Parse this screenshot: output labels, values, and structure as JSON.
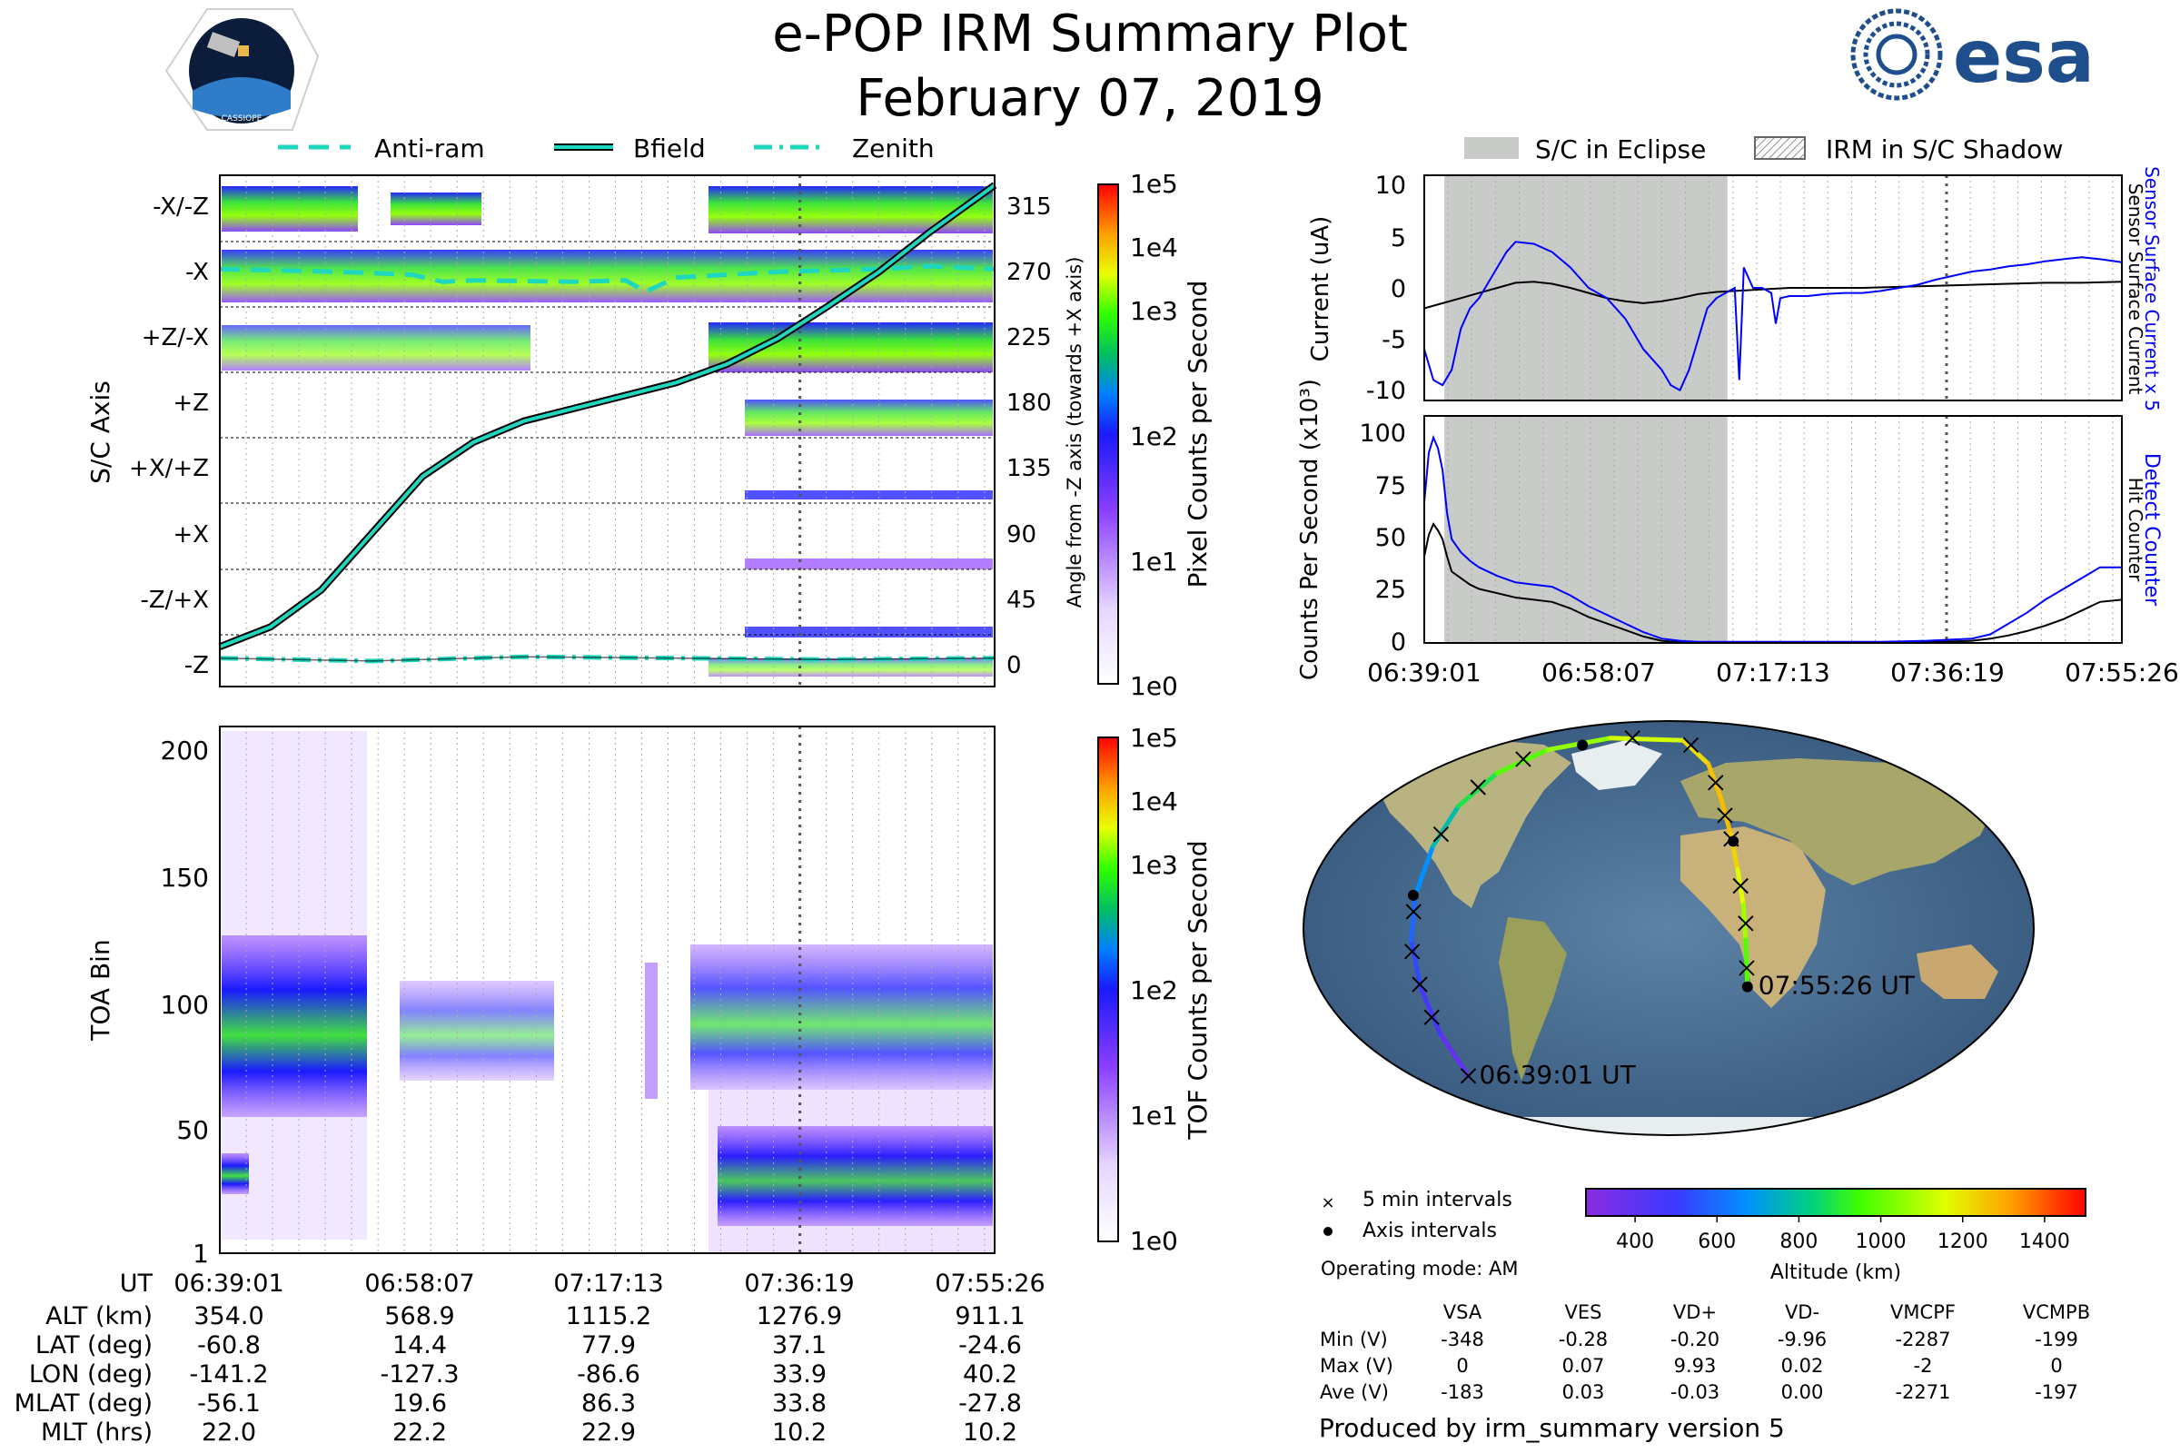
{
  "header": {
    "title": "e-POP IRM Summary Plot",
    "date": "February 07, 2019",
    "mission_logo_text": "CASSIOPE",
    "agency_logo_text": "esa"
  },
  "legends": {
    "left": [
      "Anti-ram",
      "Bfield",
      "Zenith"
    ],
    "right": [
      "S/C in Eclipse",
      "IRM in S/C Shadow"
    ]
  },
  "colors": {
    "bfield": "#1fd6bf",
    "antiram": "#1fd6bf",
    "eclipse": "#c8cbc8",
    "detect_counter": "#0000ff",
    "hit_counter": "#000000",
    "sensor_current_x5": "#0000ff",
    "sensor_current": "#000000"
  },
  "chart_data": [
    {
      "id": "axis",
      "type": "heatmap",
      "ylabel": "S/C Axis",
      "categories": [
        "-X/-Z",
        "-X",
        "+Z/-X",
        "+Z",
        "+X/+Z",
        "+X",
        "-Z/+X",
        "-Z"
      ],
      "right_ylabel": "Angle from -Z axis (towards +X axis)",
      "right_ticks": [
        315,
        270,
        225,
        180,
        135,
        90,
        45,
        0
      ],
      "ylim": [
        -20,
        340
      ],
      "x_range_min": [
        0,
        76.4
      ],
      "colorbar": {
        "label": "Pixel Counts per Second",
        "ticks": [
          "1e5",
          "1e4",
          "1e3",
          "1e2",
          "1e1",
          "1e0"
        ]
      },
      "series": [
        {
          "name": "Bfield",
          "x": [
            0,
            5,
            10,
            15,
            20,
            25,
            30,
            35,
            40,
            45,
            50,
            55,
            60,
            65,
            70,
            76.4
          ],
          "values": [
            8,
            22,
            48,
            88,
            128,
            152,
            167,
            176,
            185,
            194,
            207,
            225,
            248,
            272,
            300,
            333
          ]
        },
        {
          "name": "Anti-ram",
          "x": [
            0,
            12,
            19,
            22,
            25,
            35,
            40,
            42,
            45,
            55,
            65,
            70,
            76.4
          ],
          "values": [
            274,
            272,
            270,
            265,
            266,
            265,
            266,
            258,
            268,
            272,
            274,
            276,
            274
          ]
        },
        {
          "name": "Zenith",
          "x": [
            0,
            15,
            30,
            45,
            60,
            76.4
          ],
          "values": [
            0,
            -2,
            1,
            0,
            -1,
            0
          ]
        }
      ]
    },
    {
      "id": "toa",
      "type": "heatmap",
      "ylabel": "TOA Bin",
      "y_ticks": [
        200,
        150,
        100,
        50,
        1
      ],
      "ylim": [
        1,
        210
      ],
      "colorbar": {
        "label": "TOF Counts per Second",
        "ticks": [
          "1e5",
          "1e4",
          "1e3",
          "1e2",
          "1e1",
          "1e0"
        ]
      }
    },
    {
      "id": "current",
      "type": "line",
      "ylabel": "Current (uA)",
      "right_labels": [
        "Sensor Surface Current x 5",
        "Sensor Surface Current"
      ],
      "y_ticks": [
        10,
        5,
        0,
        -5,
        -10
      ],
      "ylim": [
        -11,
        11
      ],
      "series": [
        {
          "name": "Sensor Surface Current x 5",
          "x": [
            0,
            1,
            2,
            3,
            4,
            5,
            6,
            7,
            8,
            9,
            10,
            12,
            14,
            16,
            18,
            20,
            22,
            24,
            26,
            27,
            28,
            29,
            30,
            31,
            32,
            33,
            34,
            34.5,
            35,
            36,
            37,
            38,
            38.5,
            39,
            40,
            42,
            44,
            46,
            48,
            50,
            52,
            54,
            56,
            58,
            60,
            62,
            64,
            66,
            68,
            70,
            72,
            74,
            76.4
          ],
          "values": [
            -6,
            -9,
            -9.5,
            -8,
            -4,
            -2,
            -1,
            0.5,
            2,
            3.5,
            4.5,
            4.3,
            3.5,
            2,
            0,
            -1,
            -3,
            -6,
            -8,
            -9.5,
            -10,
            -8,
            -5,
            -2,
            -1,
            -0.5,
            0,
            -9,
            2,
            0,
            0,
            -0.5,
            -3.5,
            -1,
            -0.8,
            -0.8,
            -0.6,
            -0.5,
            -0.5,
            -0.3,
            0,
            0.3,
            0.8,
            1.2,
            1.6,
            1.8,
            2.1,
            2.3,
            2.6,
            2.8,
            3,
            2.8,
            2.5
          ]
        },
        {
          "name": "Sensor Surface Current",
          "x": [
            0,
            2,
            4,
            6,
            8,
            10,
            12,
            14,
            16,
            18,
            20,
            22,
            24,
            26,
            28,
            30,
            32,
            34,
            36,
            38,
            40,
            44,
            48,
            52,
            56,
            60,
            64,
            68,
            72,
            76.4
          ],
          "values": [
            -2,
            -1.5,
            -1,
            -0.5,
            0,
            0.5,
            0.6,
            0.4,
            0,
            -0.5,
            -1,
            -1.3,
            -1.5,
            -1.3,
            -1,
            -0.6,
            -0.4,
            -0.3,
            -0.2,
            -0.1,
            0,
            0,
            0,
            0.1,
            0.2,
            0.3,
            0.4,
            0.5,
            0.5,
            0.6
          ]
        }
      ]
    },
    {
      "id": "counts",
      "type": "line",
      "ylabel": "Counts Per Second (x10³)",
      "right_labels": [
        "Detect Counter",
        "Hit Counter"
      ],
      "y_ticks": [
        100,
        75,
        50,
        25,
        0
      ],
      "ylim": [
        0,
        105
      ],
      "xlim": [
        0,
        76.4
      ],
      "x_ticks": [
        "06:39:01",
        "06:58:07",
        "07:17:13",
        "07:36:19",
        "07:55:26"
      ],
      "series": [
        {
          "name": "Detect Counter",
          "x": [
            0,
            0.5,
            1,
            1.5,
            2,
            2.5,
            3,
            4,
            5,
            6,
            8,
            10,
            12,
            14,
            16,
            18,
            20,
            22,
            24,
            26,
            28,
            30,
            35,
            40,
            45,
            50,
            55,
            60,
            62,
            64,
            66,
            68,
            70,
            72,
            74,
            76.4
          ],
          "values": [
            65,
            88,
            95,
            90,
            80,
            60,
            48,
            42,
            38,
            35,
            31,
            28,
            27,
            26,
            22,
            17,
            13,
            9,
            5,
            2,
            1,
            0.5,
            0.5,
            0.5,
            0.5,
            0.5,
            1,
            2,
            4,
            9,
            14,
            20,
            25,
            30,
            35,
            35
          ]
        },
        {
          "name": "Hit Counter",
          "x": [
            0,
            0.5,
            1,
            1.5,
            2,
            2.5,
            3,
            4,
            5,
            6,
            8,
            10,
            12,
            14,
            16,
            18,
            20,
            22,
            24,
            26,
            28,
            30,
            35,
            40,
            45,
            50,
            55,
            60,
            62,
            64,
            66,
            68,
            70,
            72,
            74,
            76.4
          ],
          "values": [
            40,
            50,
            55,
            52,
            48,
            40,
            33,
            30,
            27,
            25,
            23,
            21,
            20,
            19,
            16,
            12,
            9,
            6,
            3,
            1,
            0.3,
            0.2,
            0.2,
            0.2,
            0.2,
            0.2,
            0.3,
            1,
            2,
            3.5,
            5.5,
            8,
            11,
            15,
            19,
            20
          ]
        }
      ]
    }
  ],
  "eclipse_minutes": [
    2.2,
    33.2
  ],
  "time_axis": {
    "ut_label": "UT",
    "times": [
      "06:39:01",
      "06:58:07",
      "07:17:13",
      "07:36:19",
      "07:55:26"
    ]
  },
  "ephemeris": {
    "rows": [
      {
        "label": "ALT (km)",
        "values": [
          "354.0",
          "568.9",
          "1115.2",
          "1276.9",
          "911.1"
        ]
      },
      {
        "label": "LAT (deg)",
        "values": [
          "-60.8",
          "14.4",
          "77.9",
          "37.1",
          "-24.6"
        ]
      },
      {
        "label": "LON (deg)",
        "values": [
          "-141.2",
          "-127.3",
          "-86.6",
          "33.9",
          "40.2"
        ]
      },
      {
        "label": "MLAT (deg)",
        "values": [
          "-56.1",
          "19.6",
          "86.3",
          "33.8",
          "-27.8"
        ]
      },
      {
        "label": "MLT (hrs)",
        "values": [
          "22.0",
          "22.2",
          "22.9",
          "10.2",
          "10.2"
        ]
      }
    ]
  },
  "map": {
    "start_label": "06:39:01 UT",
    "end_label": "07:55:26 UT",
    "legend_interval": "5 min intervals",
    "legend_axis": "Axis intervals",
    "track": [
      {
        "lon": -120,
        "lat": -63,
        "alt": 354
      },
      {
        "lon": -124,
        "lat": -45,
        "alt": 420
      },
      {
        "lon": -126,
        "lat": -25,
        "alt": 500
      },
      {
        "lon": -127,
        "lat": -5,
        "alt": 560
      },
      {
        "lon": -126,
        "lat": 14,
        "alt": 620
      },
      {
        "lon": -123,
        "lat": 35,
        "alt": 720
      },
      {
        "lon": -118,
        "lat": 52,
        "alt": 830
      },
      {
        "lon": -105,
        "lat": 66,
        "alt": 930
      },
      {
        "lon": -80,
        "lat": 76,
        "alt": 1020
      },
      {
        "lon": -40,
        "lat": 81,
        "alt": 1100
      },
      {
        "lon": 10,
        "lat": 80,
        "alt": 1180
      },
      {
        "lon": 25,
        "lat": 70,
        "alt": 1250
      },
      {
        "lon": 30,
        "lat": 55,
        "alt": 1277
      },
      {
        "lon": 33,
        "lat": 40,
        "alt": 1260
      },
      {
        "lon": 35,
        "lat": 25,
        "alt": 1200
      },
      {
        "lon": 37,
        "lat": 10,
        "alt": 1120
      },
      {
        "lon": 38,
        "lat": -5,
        "alt": 1030
      },
      {
        "lon": 40,
        "lat": -25,
        "alt": 911
      }
    ],
    "five_min_marks": [
      {
        "lon": -120,
        "lat": -63
      },
      {
        "lon": -125,
        "lat": -38
      },
      {
        "lon": -126,
        "lat": -24
      },
      {
        "lon": -127,
        "lat": -10
      },
      {
        "lon": -126,
        "lat": 7
      },
      {
        "lon": -121,
        "lat": 40
      },
      {
        "lon": -112,
        "lat": 60
      },
      {
        "lon": -93,
        "lat": 72
      },
      {
        "lon": -25,
        "lat": 81
      },
      {
        "lon": 15,
        "lat": 78
      },
      {
        "lon": 28,
        "lat": 62
      },
      {
        "lon": 31,
        "lat": 48
      },
      {
        "lon": 33,
        "lat": 38
      },
      {
        "lon": 36,
        "lat": 18
      },
      {
        "lon": 38,
        "lat": 2
      },
      {
        "lon": 39,
        "lat": -17
      }
    ],
    "axis_marks": [
      {
        "lon": -127,
        "lat": 14
      },
      {
        "lon": -58,
        "lat": 78
      },
      {
        "lon": 34,
        "lat": 37
      },
      {
        "lon": 40,
        "lat": -25
      }
    ]
  },
  "altitude_colorbar": {
    "label": "Altitude (km)",
    "ticks": [
      400,
      600,
      800,
      1000,
      1200,
      1400
    ],
    "range": [
      280,
      1500
    ]
  },
  "operating_mode": "Operating mode: AM",
  "voltage_table": {
    "columns": [
      "VSA",
      "VES",
      "VD+",
      "VD-",
      "VMCPF",
      "VCMPB"
    ],
    "rows": [
      {
        "label": "Min (V)",
        "values": [
          "-348",
          "-0.28",
          "-0.20",
          "-9.96",
          "-2287",
          "-199"
        ]
      },
      {
        "label": "Max (V)",
        "values": [
          "0",
          "0.07",
          "9.93",
          "0.02",
          "-2",
          "0"
        ]
      },
      {
        "label": "Ave (V)",
        "values": [
          "-183",
          "0.03",
          "-0.03",
          "0.00",
          "-2271",
          "-197"
        ]
      }
    ]
  },
  "footer": "Produced by irm_summary version 5"
}
